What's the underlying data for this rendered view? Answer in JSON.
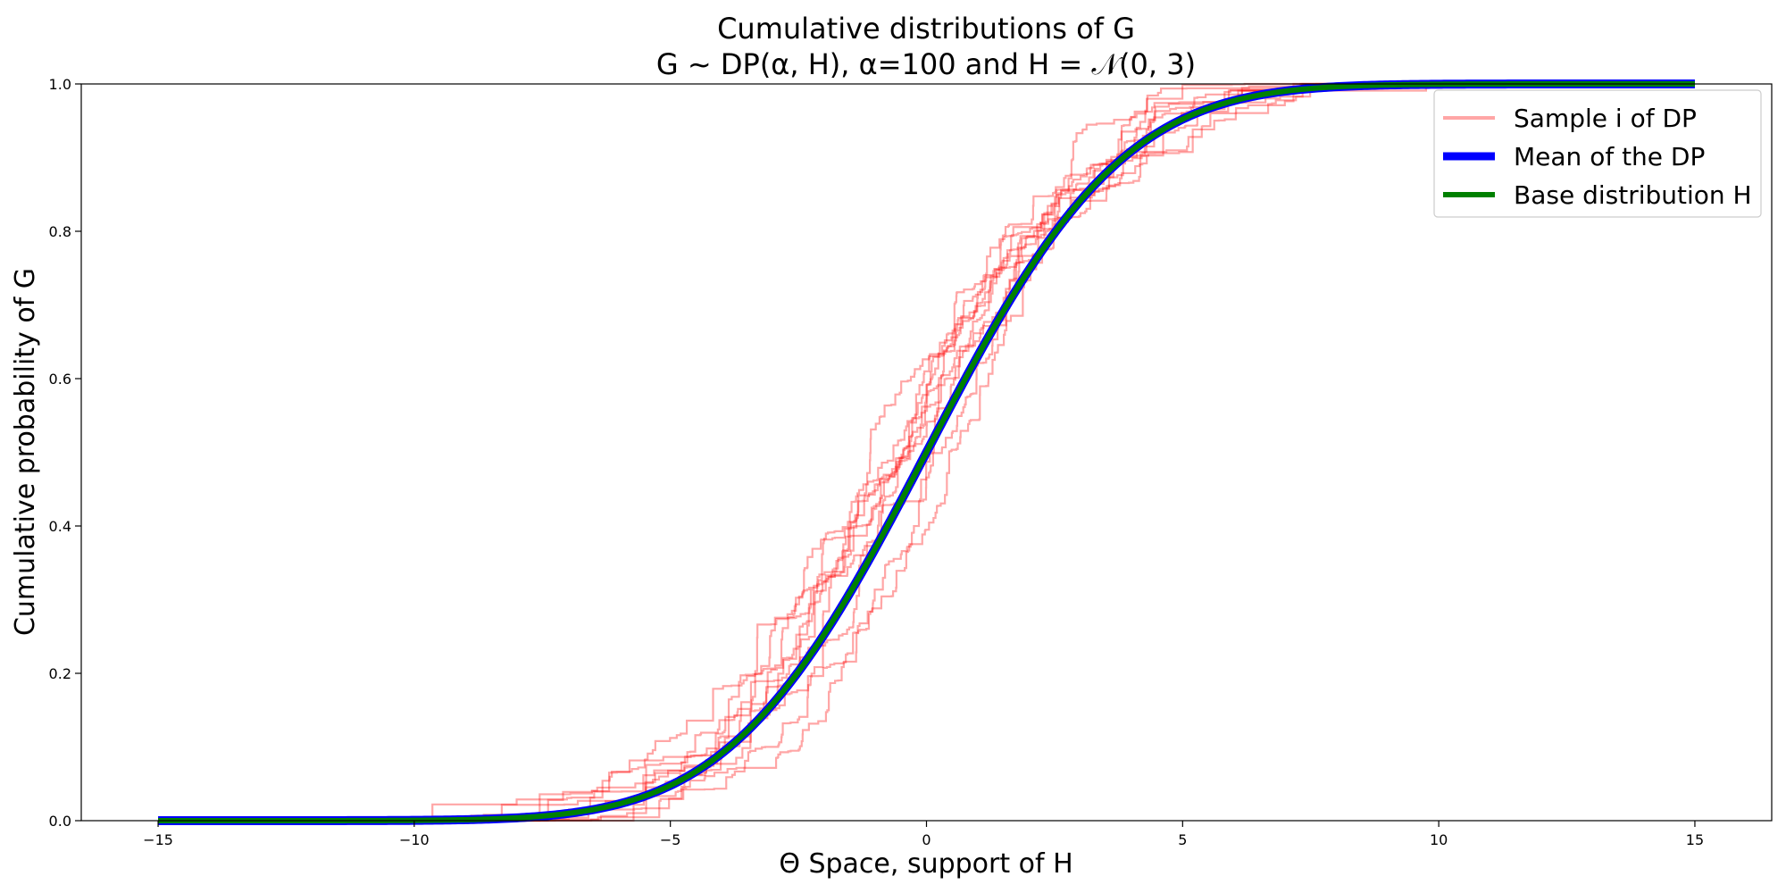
{
  "chart_data": {
    "type": "line",
    "title_line1": "Cumulative distributions of G",
    "title_line2": "G ~ DP(α, H), α=100 and H = 𝒩(0, 3)",
    "xlabel": "Θ Space, support of H",
    "ylabel": "Cumulative probability of G",
    "xlim": [
      -16.5,
      16.5
    ],
    "ylim": [
      0,
      1
    ],
    "xticks": [
      -15,
      -10,
      -5,
      0,
      5,
      10,
      15
    ],
    "xtick_labels": [
      "−15",
      "−10",
      "−5",
      "0",
      "5",
      "10",
      "15"
    ],
    "yticks": [
      0,
      0.2,
      0.4,
      0.6,
      0.8,
      1
    ],
    "ytick_labels": [
      "0.0",
      "0.2",
      "0.4",
      "0.6",
      "0.8",
      "1.0"
    ],
    "grid": false,
    "legend_position": "top-right",
    "base_distribution": {
      "mean": 0,
      "std": 3,
      "x_range": [
        -15,
        15
      ]
    },
    "sample_count": 10,
    "sample_alpha": 100,
    "series": [
      {
        "name": "Sample i of DP",
        "color": "#ff0000",
        "opacity": 0.35,
        "role": "samples"
      },
      {
        "name": "Mean of the DP",
        "color": "#0000ff",
        "role": "mean"
      },
      {
        "name": "Base distribution H",
        "color": "#008000",
        "role": "base"
      }
    ]
  }
}
